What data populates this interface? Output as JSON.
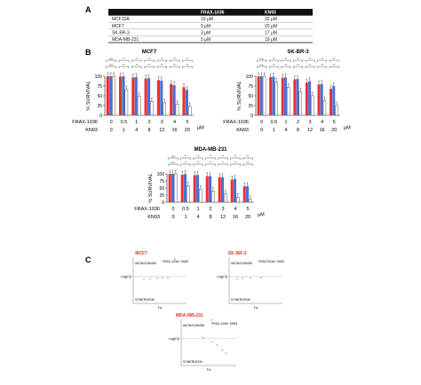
{
  "panel_labels": {
    "a": "A",
    "b": "B",
    "c": "C"
  },
  "colors": {
    "frax": "#e8312f",
    "kn93": "#4a6fd6",
    "combo": "#ffffff",
    "table_header": "#111111",
    "title_red": "#e8312f",
    "point": "#9aa8d8"
  },
  "ic50_table": {
    "headers": [
      "",
      "FRAX-1036",
      "KN93"
    ],
    "rows": [
      [
        "MCF10A",
        "10 μM",
        "32 μM"
      ],
      [
        "MCF7",
        "9 μM",
        "20 μM"
      ],
      [
        "SK-BR-3",
        "3 μM",
        "17 μM"
      ],
      [
        "MDA-MB-231",
        "5 μM",
        "19 μM"
      ]
    ]
  },
  "dose_labels": {
    "frax_label": "FRAX-1036",
    "kn93_label": "KN93",
    "unit": "μM",
    "frax_doses": [
      "0",
      "0.5",
      "1",
      "2",
      "3",
      "4",
      "5"
    ],
    "kn93_doses": [
      "0",
      "1",
      "4",
      "8",
      "12",
      "16",
      "20"
    ]
  },
  "sig_labels": [
    "n.s.",
    "**",
    "**",
    "**",
    "**",
    "**",
    "**"
  ],
  "chart_data": [
    {
      "type": "bar",
      "title": "MCF7",
      "ylabel": "% SURVIVAL",
      "ylim": [
        0,
        100
      ],
      "yticks": [
        0,
        25,
        50,
        75,
        100
      ],
      "series": [
        {
          "name": "FRAX-1036",
          "values": [
            100,
            99,
            97,
            94,
            90,
            80,
            72
          ]
        },
        {
          "name": "KN93",
          "values": [
            100,
            100,
            98,
            95,
            89,
            77,
            65
          ]
        },
        {
          "name": "FRAX-1036 + KN93",
          "values": [
            100,
            66,
            49,
            36,
            32,
            29,
            23
          ]
        }
      ]
    },
    {
      "type": "bar",
      "title": "SK-BR-3",
      "ylabel": "% SURVIVAL",
      "ylim": [
        0,
        100
      ],
      "yticks": [
        0,
        25,
        50,
        75,
        100
      ],
      "series": [
        {
          "name": "FRAX-1036",
          "values": [
            100,
            98,
            96,
            92,
            84,
            79,
            68
          ]
        },
        {
          "name": "KN93",
          "values": [
            100,
            99,
            97,
            93,
            87,
            80,
            75
          ]
        },
        {
          "name": "FRAX-1036 + KN93",
          "values": [
            100,
            85,
            72,
            60,
            50,
            38,
            25
          ]
        }
      ]
    },
    {
      "type": "bar",
      "title": "MDA-MB-231",
      "ylabel": "% SURVIVAL",
      "ylim": [
        0,
        100
      ],
      "yticks": [
        0,
        25,
        50,
        75,
        100
      ],
      "series": [
        {
          "name": "FRAX-1036",
          "values": [
            100,
            97,
            95,
            92,
            88,
            80,
            56
          ]
        },
        {
          "name": "KN93",
          "values": [
            100,
            99,
            96,
            92,
            88,
            82,
            56
          ]
        },
        {
          "name": "FRAX-1036 + KN93",
          "values": [
            100,
            58,
            46,
            40,
            30,
            18,
            10
          ]
        }
      ]
    },
    {
      "type": "scatter",
      "title": "MCF7",
      "xlabel": "Fa",
      "ylabel": "Log(CI)",
      "annotations": [
        "ANTAGONISM",
        "SYNERGISM",
        "FRAX-1036+ KN93"
      ],
      "points": [
        [
          0.2,
          -0.12
        ],
        [
          0.32,
          -0.1
        ],
        [
          0.45,
          -0.08
        ],
        [
          0.55,
          -0.05
        ],
        [
          0.65,
          -0.06
        ],
        [
          0.78,
          0.85
        ]
      ]
    },
    {
      "type": "scatter",
      "title": "SK-BR-3",
      "xlabel": "Fa",
      "ylabel": "Log(CI)",
      "annotations": [
        "ANTAGONISM",
        "SYNERGISM",
        "FRAX-1036+ KN93"
      ],
      "points": [
        [
          0.15,
          -0.1
        ],
        [
          0.25,
          -0.08
        ],
        [
          0.4,
          -0.06
        ],
        [
          0.6,
          -0.05
        ],
        [
          0.72,
          0.78
        ]
      ]
    },
    {
      "type": "scatter",
      "title": "MDA-MB-231",
      "xlabel": "Fa",
      "ylabel": "Log(CI)",
      "annotations": [
        "ANTAGONISM",
        "SYNERGISM",
        "FRAX-1036+ KN93"
      ],
      "points": [
        [
          0.4,
          0.05
        ],
        [
          0.55,
          -0.15
        ],
        [
          0.65,
          -0.3
        ],
        [
          0.75,
          -0.55
        ],
        [
          0.82,
          -0.7
        ],
        [
          0.55,
          0.9
        ]
      ]
    }
  ]
}
